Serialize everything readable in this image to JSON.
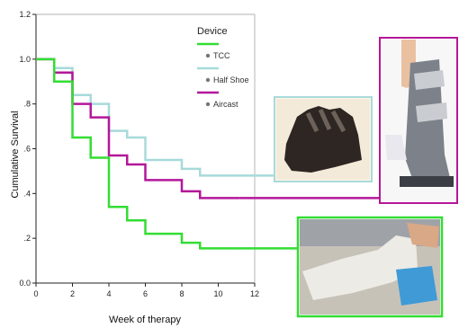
{
  "chart_data": {
    "type": "line",
    "step": true,
    "title": "",
    "xlabel": "Week of therapy",
    "ylabel": "Cumulative Survival",
    "xlim": [
      0,
      12
    ],
    "ylim": [
      0,
      1.2
    ],
    "xticks": [
      0,
      2,
      4,
      6,
      8,
      10,
      12
    ],
    "yticks": [
      0,
      0.2,
      0.4,
      0.6,
      0.8,
      1.0,
      1.2
    ],
    "ytick_labels": [
      "0.0",
      ".2",
      ".4",
      ".6",
      ".8",
      "1.0",
      "1.2"
    ],
    "grid": false,
    "legend_title": "Device",
    "legend_position": "top-right",
    "series": [
      {
        "name": "TCC",
        "color": "#33dd33",
        "x": [
          0,
          1,
          2,
          3,
          4,
          5,
          6,
          8,
          9,
          11.2
        ],
        "y": [
          1.0,
          0.9,
          0.65,
          0.56,
          0.34,
          0.28,
          0.22,
          0.18,
          0.155,
          0.155
        ]
      },
      {
        "name": "Half Shoe",
        "color": "#a8dada",
        "x": [
          0,
          1,
          2,
          3,
          4,
          5,
          6,
          8,
          9,
          11.2
        ],
        "y": [
          1.0,
          0.96,
          0.84,
          0.8,
          0.68,
          0.65,
          0.55,
          0.51,
          0.48,
          0.48
        ]
      },
      {
        "name": "Aircast",
        "color": "#b3179a",
        "x": [
          0,
          1,
          2,
          3,
          4,
          5,
          6,
          8,
          9,
          11.2
        ],
        "y": [
          1.0,
          0.94,
          0.8,
          0.74,
          0.57,
          0.53,
          0.46,
          0.41,
          0.38,
          0.38
        ]
      }
    ]
  },
  "photos": [
    {
      "name": "half-shoe-photo",
      "series": "Half Shoe",
      "border": "#a8dada"
    },
    {
      "name": "aircast-photo",
      "series": "Aircast",
      "border": "#b3179a"
    },
    {
      "name": "tcc-photo",
      "series": "TCC",
      "border": "#33dd33"
    }
  ]
}
